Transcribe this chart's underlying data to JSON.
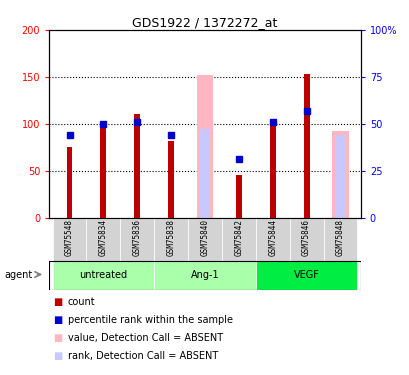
{
  "title": "GDS1922 / 1372272_at",
  "samples": [
    "GSM75548",
    "GSM75834",
    "GSM75836",
    "GSM75838",
    "GSM75840",
    "GSM75842",
    "GSM75844",
    "GSM75846",
    "GSM75848"
  ],
  "groups": [
    {
      "label": "untreated",
      "indices": [
        0,
        1,
        2
      ],
      "color": "#90EE90"
    },
    {
      "label": "Ang-1",
      "indices": [
        3,
        4,
        5
      ],
      "color": "#7FFF00"
    },
    {
      "label": "VEGF",
      "indices": [
        6,
        7,
        8
      ],
      "color": "#00EE44"
    }
  ],
  "count_values": [
    75,
    97,
    110,
    82,
    0,
    45,
    105,
    153,
    0
  ],
  "rank_values": [
    44,
    50,
    51,
    44,
    0,
    31,
    51,
    57,
    0
  ],
  "absent_count": [
    0,
    0,
    0,
    0,
    152,
    0,
    0,
    0,
    92
  ],
  "absent_rank": [
    0,
    0,
    0,
    0,
    47,
    0,
    0,
    0,
    44
  ],
  "count_color": "#BB0000",
  "rank_color": "#0000CC",
  "absent_count_color": "#FFB6C1",
  "absent_rank_color": "#C8C8FF",
  "ylim_left": [
    0,
    200
  ],
  "ylim_right": [
    0,
    100
  ],
  "yticks_left": [
    0,
    50,
    100,
    150,
    200
  ],
  "yticks_right": [
    0,
    25,
    50,
    75,
    100
  ],
  "ytick_labels_left": [
    "0",
    "50",
    "100",
    "150",
    "200"
  ],
  "ytick_labels_right": [
    "0",
    "25",
    "50",
    "75",
    "100%"
  ],
  "bar_width": 0.5,
  "group_bg_color": "#D3D3D3",
  "agent_label": "agent",
  "group_colors": [
    "#AAFFAA",
    "#AAFFAA",
    "#00EE44"
  ],
  "legend_items": [
    {
      "color": "#BB0000",
      "label": "count"
    },
    {
      "color": "#0000CC",
      "label": "percentile rank within the sample"
    },
    {
      "color": "#FFB6C1",
      "label": "value, Detection Call = ABSENT"
    },
    {
      "color": "#C8C8FF",
      "label": "rank, Detection Call = ABSENT"
    }
  ]
}
